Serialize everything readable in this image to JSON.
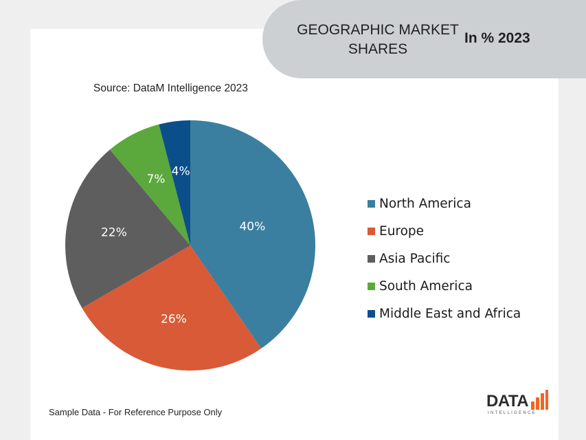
{
  "header": {
    "title": "GEOGRAPHIC MARKET SHARES",
    "year_label": "In % 2023"
  },
  "source": "Source: DataM Intelligence 2023",
  "footnote": "Sample Data - For Reference Purpose Only",
  "logo": {
    "text": "DATA",
    "subtext": "INTELLIGENCE"
  },
  "chart_data": {
    "type": "pie",
    "title": "GEOGRAPHIC MARKET SHARES In % 2023",
    "categories": [
      "North America",
      "Europe",
      "Asia Pacific",
      "South America",
      "Middle East and Africa"
    ],
    "values": [
      40,
      26,
      22,
      7,
      4
    ],
    "labels": [
      "40%",
      "26%",
      "22%",
      "7%",
      "4%"
    ],
    "colors": [
      "#3a7fa0",
      "#d95a36",
      "#5e5e5e",
      "#5ba83c",
      "#0b4f8a"
    ],
    "legend_position": "right"
  }
}
